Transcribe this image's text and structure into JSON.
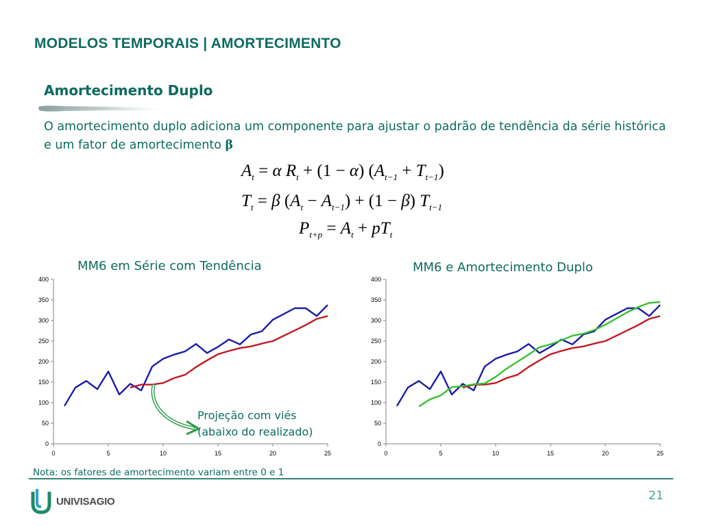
{
  "header": {
    "title": "MODELOS TEMPORAIS | AMORTECIMENTO"
  },
  "section": {
    "title": "Amortecimento Duplo",
    "intro": "O amortecimento duplo adiciona um componente para ajustar o padrão de tendência da série histórica e um fator de amortecimento",
    "beta": "β"
  },
  "equations": [
    "At = α Rt + (1−α)(At−1 + Tt−1)",
    "Tt = β(At − At−1) + (1−β)Tt−1",
    "Pt+p = At + pTt"
  ],
  "colors": {
    "accent": "#0d6b5f",
    "actual": "#1a1aa8",
    "mm6": "#c0191f",
    "damped": "#36c12e",
    "page_number": "#3aa87a"
  },
  "chart_data": [
    {
      "type": "line",
      "title": "MM6 em Série com Tendência",
      "xlim": [
        0,
        25
      ],
      "ylim": [
        0,
        400
      ],
      "xticks": [
        0,
        5,
        10,
        15,
        20,
        25
      ],
      "yticks": [
        0,
        50,
        100,
        150,
        200,
        250,
        300,
        350,
        400
      ],
      "grid": false,
      "series": [
        {
          "color": "#1a1aa8",
          "x": [
            1,
            2,
            3,
            4,
            5,
            6,
            7,
            8,
            9,
            10,
            11,
            12,
            13,
            14,
            15,
            16,
            17,
            18,
            19,
            20,
            21,
            22,
            23,
            24,
            25
          ],
          "y": [
            92,
            137,
            153,
            133,
            176,
            120,
            146,
            130,
            188,
            207,
            217,
            225,
            243,
            221,
            236,
            254,
            242,
            266,
            274,
            302,
            316,
            330,
            330,
            311,
            338
          ]
        },
        {
          "color": "#c0191f",
          "x": [
            7,
            8,
            9,
            10,
            11,
            12,
            13,
            14,
            15,
            16,
            17,
            18,
            19,
            20,
            21,
            22,
            23,
            24,
            25
          ],
          "y": [
            137,
            144,
            144,
            148,
            160,
            168,
            187,
            203,
            218,
            226,
            233,
            237,
            244,
            250,
            263,
            276,
            289,
            304,
            311
          ]
        }
      ]
    },
    {
      "type": "line",
      "title": "MM6 e Amortecimento Duplo",
      "xlim": [
        0,
        25
      ],
      "ylim": [
        0,
        400
      ],
      "xticks": [
        0,
        5,
        10,
        15,
        20,
        25
      ],
      "yticks": [
        0,
        50,
        100,
        150,
        200,
        250,
        300,
        350,
        400
      ],
      "grid": false,
      "series": [
        {
          "color": "#1a1aa8",
          "x": [
            1,
            2,
            3,
            4,
            5,
            6,
            7,
            8,
            9,
            10,
            11,
            12,
            13,
            14,
            15,
            16,
            17,
            18,
            19,
            20,
            21,
            22,
            23,
            24,
            25
          ],
          "y": [
            92,
            137,
            153,
            133,
            176,
            120,
            146,
            130,
            188,
            207,
            217,
            225,
            243,
            221,
            236,
            254,
            242,
            266,
            274,
            302,
            316,
            330,
            330,
            311,
            338
          ]
        },
        {
          "color": "#c0191f",
          "x": [
            7,
            8,
            9,
            10,
            11,
            12,
            13,
            14,
            15,
            16,
            17,
            18,
            19,
            20,
            21,
            22,
            23,
            24,
            25
          ],
          "y": [
            137,
            144,
            144,
            148,
            160,
            168,
            187,
            203,
            218,
            226,
            233,
            237,
            244,
            250,
            263,
            276,
            289,
            304,
            311
          ]
        },
        {
          "color": "#36c12e",
          "x": [
            3,
            4,
            5,
            6,
            7,
            8,
            9,
            10,
            11,
            12,
            13,
            14,
            15,
            16,
            17,
            18,
            19,
            20,
            21,
            22,
            23,
            24,
            25
          ],
          "y": [
            91,
            108,
            118,
            138,
            140,
            145,
            147,
            163,
            183,
            200,
            217,
            235,
            242,
            252,
            263,
            268,
            277,
            290,
            305,
            320,
            333,
            343,
            345
          ]
        }
      ]
    }
  ],
  "annotation": {
    "line1": "Projeção com viés",
    "line2": "(abaixo do realizado)"
  },
  "note": "Nota: os fatores de amortecimento variam entre 0 e 1",
  "page_number": "21",
  "logo": {
    "text": "UNIVISAGIO"
  }
}
